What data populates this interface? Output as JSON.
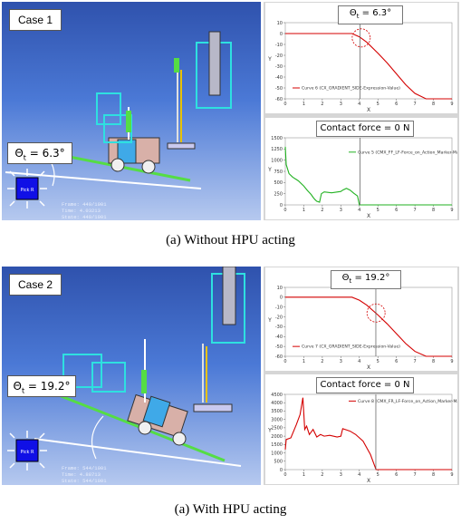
{
  "case1": {
    "label": "Case 1",
    "theta_value": "6.3°",
    "info": [
      "Frame:  449/1001",
      "Time:  4.03213",
      "State:  449/1001"
    ],
    "top_plot": {
      "title_value": "6.3°",
      "legend": "Curve 6 (CX_GRADIENT_SIDE-Expression-Value)",
      "y_ticks": [
        "10",
        "0",
        "-10",
        "-20",
        "-30",
        "-40",
        "-50",
        "-60"
      ],
      "x_ticks": [
        "0",
        "1",
        "2",
        "3",
        "4",
        "5",
        "6",
        "7",
        "8",
        "9"
      ],
      "xlabel": "X",
      "ylabel": "Y",
      "color": "#d40000",
      "chart_data": {
        "type": "line",
        "x": [
          0,
          1,
          2,
          3,
          3.6,
          4,
          4.4,
          5,
          5.5,
          6,
          6.5,
          7,
          7.6,
          8,
          8.5,
          9
        ],
        "y": [
          0,
          0,
          0,
          0,
          0,
          -3,
          -8,
          -18,
          -27,
          -37,
          -47,
          -55,
          -60,
          -60,
          -60,
          -60
        ],
        "xlim": [
          0,
          9
        ],
        "ylim": [
          -60,
          10
        ]
      }
    },
    "bottom_plot": {
      "title": "Contact force = 0 N",
      "legend": "Curve 5 (CMX_FF_LF-Force_on_Action_Marker-Magnitude)",
      "y_ticks": [
        "1500",
        "1250",
        "1000",
        "750",
        "500",
        "250",
        "0"
      ],
      "x_ticks": [
        "0",
        "1",
        "2",
        "3",
        "4",
        "5",
        "6",
        "7",
        "8",
        "9"
      ],
      "xlabel": "X",
      "ylabel": "Y",
      "color": "#22b222",
      "chart_data": {
        "type": "line",
        "x": [
          0,
          0.05,
          0.2,
          0.4,
          0.7,
          1.0,
          1.2,
          1.4,
          1.5,
          1.6,
          1.7,
          1.85,
          1.95,
          2.1,
          2.5,
          3.0,
          3.1,
          3.3,
          3.5,
          3.7,
          3.9,
          4.0,
          4.1,
          5,
          6,
          7,
          8,
          9
        ],
        "y": [
          1300,
          900,
          700,
          620,
          540,
          420,
          320,
          230,
          170,
          120,
          80,
          60,
          250,
          290,
          270,
          300,
          330,
          370,
          330,
          260,
          200,
          0,
          0,
          0,
          0,
          0,
          0,
          0
        ],
        "xlim": [
          0,
          9
        ],
        "ylim": [
          0,
          1500
        ]
      }
    }
  },
  "caption1": "(a)  Without  HPU  acting",
  "case2": {
    "label": "Case 2",
    "theta_value": "19.2°",
    "info": [
      "Frame:  544/1001",
      "Time:  4.88713",
      "State:  544/1001"
    ],
    "top_plot": {
      "title_value": "19.2°",
      "legend": "Curve 7 (CX_GRADIENT_SIDE-Expression-Value)",
      "y_ticks": [
        "10",
        "0",
        "-10",
        "-20",
        "-30",
        "-40",
        "-50",
        "-60"
      ],
      "x_ticks": [
        "0",
        "1",
        "2",
        "3",
        "4",
        "5",
        "6",
        "7",
        "8",
        "9"
      ],
      "xlabel": "X",
      "ylabel": "Y",
      "color": "#d40000",
      "chart_data": {
        "type": "line",
        "x": [
          0,
          1,
          2,
          3,
          3.6,
          4,
          4.4,
          5,
          5.5,
          6,
          6.5,
          7,
          7.6,
          8,
          8.5,
          9
        ],
        "y": [
          0,
          0,
          0,
          0,
          0,
          -3,
          -8,
          -18,
          -27,
          -37,
          -47,
          -55,
          -60,
          -60,
          -60,
          -60
        ],
        "xlim": [
          0,
          9
        ],
        "ylim": [
          -60,
          10
        ]
      }
    },
    "bottom_plot": {
      "title": "Contact force = 0 N",
      "legend": "Curve 8 (CMX_FR_LF-Force_on_Action_Marker-Magnitude)",
      "y_ticks": [
        "4500",
        "4000",
        "3500",
        "3000",
        "2500",
        "2000",
        "1500",
        "1000",
        "500",
        "0"
      ],
      "x_ticks": [
        "0",
        "1",
        "2",
        "3",
        "4",
        "5",
        "6",
        "7",
        "8",
        "9"
      ],
      "xlabel": "X",
      "ylabel": "Y",
      "color": "#d40000",
      "chart_data": {
        "type": "line",
        "x": [
          0,
          0.05,
          0.3,
          0.6,
          0.8,
          0.95,
          1.05,
          1.15,
          1.3,
          1.5,
          1.7,
          1.9,
          2.1,
          2.4,
          2.8,
          3.0,
          3.1,
          3.5,
          3.8,
          4.2,
          4.6,
          4.8,
          4.9,
          5,
          6,
          7,
          8,
          9
        ],
        "y": [
          1200,
          1800,
          1900,
          2700,
          3300,
          4300,
          2400,
          2600,
          2100,
          2400,
          1950,
          2100,
          2000,
          2050,
          1950,
          2000,
          2450,
          2300,
          2100,
          1700,
          900,
          300,
          0,
          0,
          0,
          0,
          0,
          0
        ],
        "xlim": [
          0,
          9
        ],
        "ylim": [
          0,
          4500
        ]
      }
    }
  },
  "caption2": "(a)  With  HPU  acting",
  "compass_label": "Pick R"
}
